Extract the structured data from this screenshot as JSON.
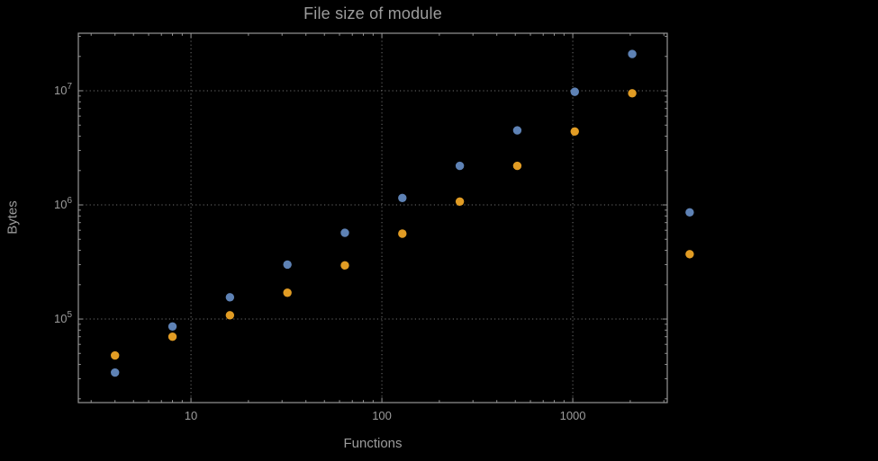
{
  "theme": {
    "background": "#000000",
    "text": "#9c9c9c",
    "frame": "#969696",
    "grid": "#6e6e6e",
    "series1_color": "#5e82b5",
    "series2_color": "#e19c24"
  },
  "chart_data": {
    "type": "scatter",
    "title": "File size of module",
    "xlabel": "Functions",
    "ylabel": "Bytes",
    "x_scale": "log",
    "y_scale": "log",
    "x_range_log10": [
      0.41,
      3.495
    ],
    "y_range_log10": [
      4.268,
      7.504
    ],
    "grid": "dotted lines at major ticks",
    "legend": "none",
    "x_ticks": [
      {
        "value": 10,
        "label": "10"
      },
      {
        "value": 100,
        "label": "100"
      },
      {
        "value": 1000,
        "label": "1000"
      }
    ],
    "y_ticks": [
      {
        "value": 100000,
        "base": "10",
        "exp": "5"
      },
      {
        "value": 1000000,
        "base": "10",
        "exp": "6"
      },
      {
        "value": 10000000,
        "base": "10",
        "exp": "7"
      }
    ],
    "series": [
      {
        "name": "series-blue",
        "color": "#5e82b5",
        "points": [
          [
            4,
            34000
          ],
          [
            8,
            86000
          ],
          [
            16,
            155000
          ],
          [
            32,
            300000
          ],
          [
            64,
            570000
          ],
          [
            128,
            1150000
          ],
          [
            256,
            2200000
          ],
          [
            512,
            4500000
          ],
          [
            1024,
            9800000
          ],
          [
            2048,
            21000000
          ],
          [
            4096,
            860000
          ]
        ]
      },
      {
        "name": "series-orange",
        "color": "#e19c24",
        "points": [
          [
            4,
            48000
          ],
          [
            8,
            70000
          ],
          [
            16,
            108000
          ],
          [
            32,
            170000
          ],
          [
            64,
            295000
          ],
          [
            128,
            560000
          ],
          [
            256,
            1070000
          ],
          [
            512,
            2200000
          ],
          [
            1024,
            4400000
          ],
          [
            2048,
            9500000
          ],
          [
            4096,
            370000
          ]
        ]
      }
    ]
  }
}
